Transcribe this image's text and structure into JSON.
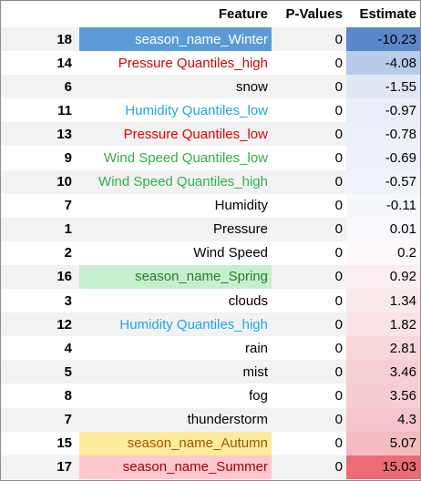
{
  "table": {
    "headers": {
      "index": "",
      "feature": "Feature",
      "p_values": "P-Values",
      "estimate": "Estimate"
    },
    "rows": [
      {
        "index": "18",
        "feature": "season_name_Winter",
        "p_value": "0",
        "estimate": "-10.23",
        "feature_color": "#ffffff",
        "feature_bg": "#5b9bd5",
        "estimate_bg": "#5b86c9"
      },
      {
        "index": "14",
        "feature": "Pressure Quantiles_high",
        "p_value": "0",
        "estimate": "-4.08",
        "feature_color": "#e00000",
        "feature_bg": "",
        "estimate_bg": "#b8cbe8"
      },
      {
        "index": "6",
        "feature": "snow",
        "p_value": "0",
        "estimate": "-1.55",
        "feature_color": "#000000",
        "feature_bg": "",
        "estimate_bg": "#e1e8f5"
      },
      {
        "index": "11",
        "feature": "Humidity Quantiles_low",
        "p_value": "0",
        "estimate": "-0.97",
        "feature_color": "#1fa8e0",
        "feature_bg": "",
        "estimate_bg": "#e9eef8"
      },
      {
        "index": "13",
        "feature": "Pressure Quantiles_low",
        "p_value": "0",
        "estimate": "-0.78",
        "feature_color": "#e00000",
        "feature_bg": "",
        "estimate_bg": "#ecf1f9"
      },
      {
        "index": "9",
        "feature": "Wind Speed Quantiles_low",
        "p_value": "0",
        "estimate": "-0.69",
        "feature_color": "#2eb14a",
        "feature_bg": "",
        "estimate_bg": "#edf2f9"
      },
      {
        "index": "10",
        "feature": "Wind Speed Quantiles_high",
        "p_value": "0",
        "estimate": "-0.57",
        "feature_color": "#2eb14a",
        "feature_bg": "",
        "estimate_bg": "#eff3fa"
      },
      {
        "index": "7",
        "feature": "Humidity",
        "p_value": "0",
        "estimate": "-0.11",
        "feature_color": "#000000",
        "feature_bg": "",
        "estimate_bg": "#f6f8fc"
      },
      {
        "index": "1",
        "feature": "Pressure",
        "p_value": "0",
        "estimate": "0.01",
        "feature_color": "#000000",
        "feature_bg": "",
        "estimate_bg": "#f8f9fd"
      },
      {
        "index": "2",
        "feature": "Wind Speed",
        "p_value": "0",
        "estimate": "0.2",
        "feature_color": "#000000",
        "feature_bg": "",
        "estimate_bg": "#fdf8f9"
      },
      {
        "index": "16",
        "feature": "season_name_Spring",
        "p_value": "0",
        "estimate": "0.92",
        "feature_color": "#2b7a2b",
        "feature_bg": "#c6efce",
        "estimate_bg": "#fbeef0"
      },
      {
        "index": "3",
        "feature": "clouds",
        "p_value": "0",
        "estimate": "1.34",
        "feature_color": "#000000",
        "feature_bg": "",
        "estimate_bg": "#fae9eb"
      },
      {
        "index": "12",
        "feature": "Humidity Quantiles_high",
        "p_value": "0",
        "estimate": "1.82",
        "feature_color": "#1fa8e0",
        "feature_bg": "",
        "estimate_bg": "#f9e3e5"
      },
      {
        "index": "4",
        "feature": "rain",
        "p_value": "0",
        "estimate": "2.81",
        "feature_color": "#000000",
        "feature_bg": "",
        "estimate_bg": "#f7d7da"
      },
      {
        "index": "5",
        "feature": "mist",
        "p_value": "0",
        "estimate": "3.46",
        "feature_color": "#000000",
        "feature_bg": "",
        "estimate_bg": "#f6cfd3"
      },
      {
        "index": "8",
        "feature": "fog",
        "p_value": "0",
        "estimate": "3.56",
        "feature_color": "#000000",
        "feature_bg": "",
        "estimate_bg": "#f6ced2"
      },
      {
        "index": "7",
        "feature": "thunderstorm",
        "p_value": "0",
        "estimate": "4.3",
        "feature_color": "#000000",
        "feature_bg": "",
        "estimate_bg": "#f4c5ca"
      },
      {
        "index": "15",
        "feature": "season_name_Autumn",
        "p_value": "0",
        "estimate": "5.07",
        "feature_color": "#9c5700",
        "feature_bg": "#ffeb9c",
        "estimate_bg": "#f3bcc1"
      },
      {
        "index": "17",
        "feature": "season_name_Summer",
        "p_value": "0",
        "estimate": "15.03",
        "feature_color": "#9c0006",
        "feature_bg": "#ffc7ce",
        "estimate_bg": "#ec6b74"
      }
    ]
  },
  "colors": {
    "header_bg": "#ffffff",
    "row_alt_bg": "#f2f2f2",
    "border": "#8c8c8c"
  }
}
